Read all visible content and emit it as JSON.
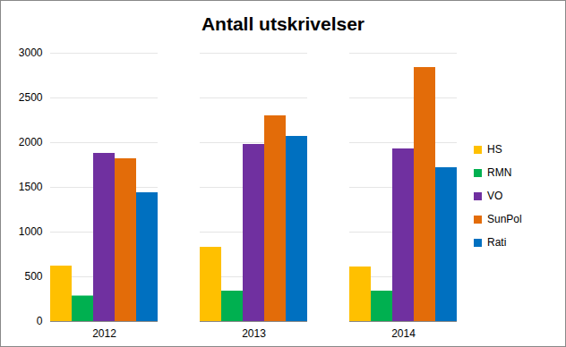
{
  "chart_data": {
    "type": "bar",
    "title": "Antall utskrivelser",
    "categories": [
      "2012",
      "2013",
      "2014"
    ],
    "series": [
      {
        "name": "HS",
        "color": "#ffc000",
        "values": [
          620,
          830,
          610
        ]
      },
      {
        "name": "RMN",
        "color": "#00b050",
        "values": [
          285,
          340,
          340
        ]
      },
      {
        "name": "VO",
        "color": "#7030a0",
        "values": [
          1880,
          1980,
          1930
        ]
      },
      {
        "name": "SunPol",
        "color": "#e36c09",
        "values": [
          1820,
          2300,
          2840
        ]
      },
      {
        "name": "Rati",
        "color": "#0070c0",
        "values": [
          1440,
          2070,
          1720
        ]
      }
    ],
    "ylim": [
      0,
      3000
    ],
    "yticks": [
      0,
      500,
      1000,
      1500,
      2000,
      2500,
      3000
    ],
    "grid": true,
    "legend": "right"
  }
}
